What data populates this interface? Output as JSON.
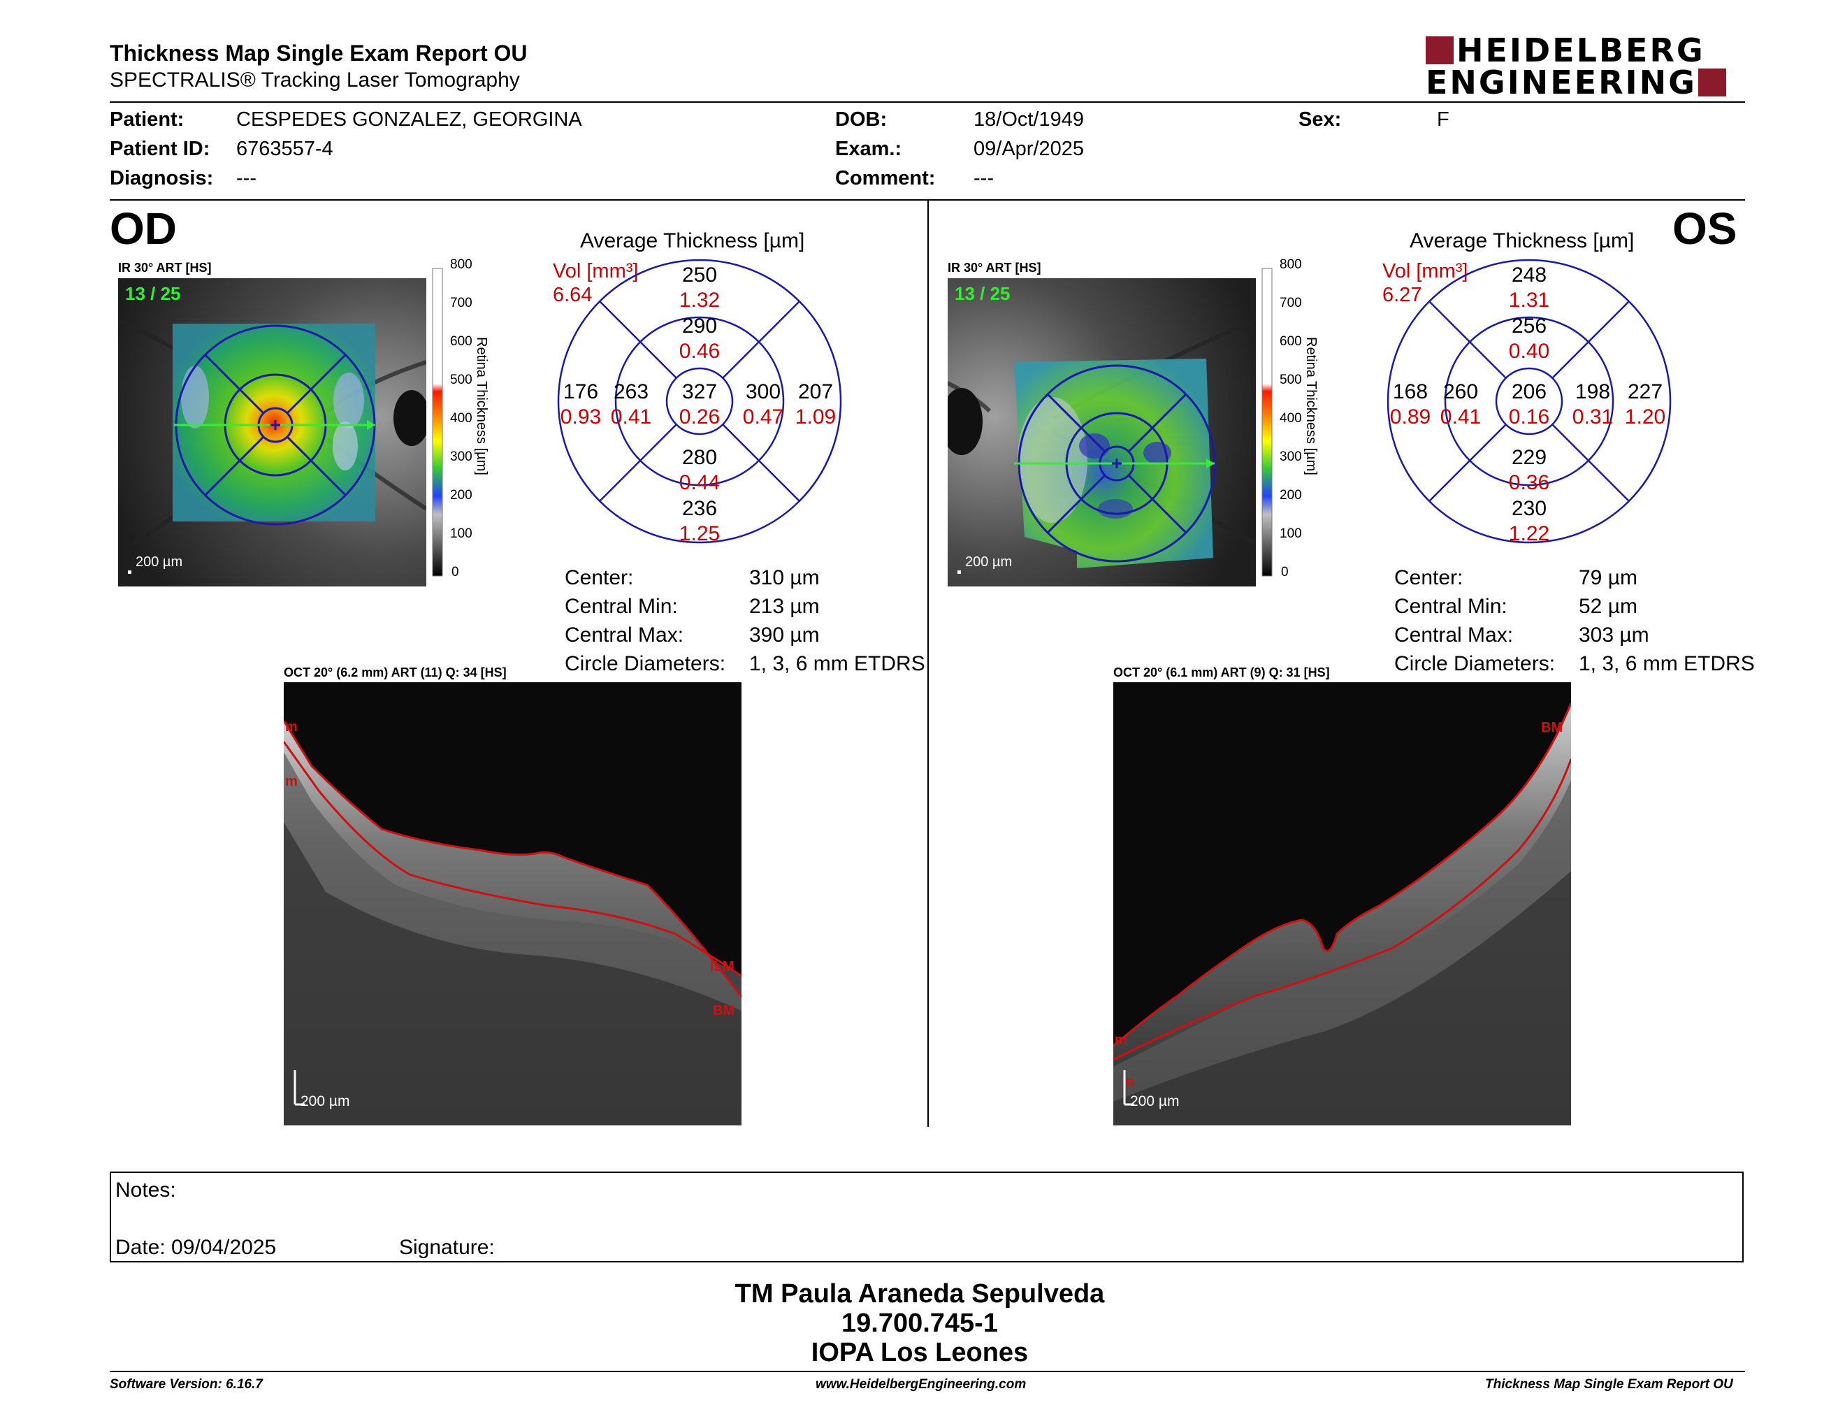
{
  "header": {
    "title": "Thickness Map Single Exam Report OU",
    "subtitle": "SPECTRALIS® Tracking Laser Tomography",
    "logo_line1": "HEIDELBERG",
    "logo_line2": "ENGINEERING",
    "logo_color": "#8b1a2b"
  },
  "patient": {
    "patient_label": "Patient:",
    "patient_value": "CESPEDES GONZALEZ, GEORGINA",
    "id_label": "Patient ID:",
    "id_value": "6763557-4",
    "diagnosis_label": "Diagnosis:",
    "diagnosis_value": "---",
    "dob_label": "DOB:",
    "dob_value": "18/Oct/1949",
    "exam_label": "Exam.:",
    "exam_value": "09/Apr/2025",
    "comment_label": "Comment:",
    "comment_value": "---",
    "sex_label": "Sex:",
    "sex_value": "F"
  },
  "od": {
    "eye": "OD",
    "ir_label": "IR 30° ART [HS]",
    "frame": "13 / 25",
    "scale_bar": "200 µm",
    "colorbar_ticks": [
      "800",
      "700",
      "600",
      "500",
      "400",
      "300",
      "200",
      "100",
      "0"
    ],
    "colorbar_title": "Retina Thickness [µm]",
    "avg_title": "Average Thickness [µm]",
    "vol_label": "Vol [mm³]",
    "vol_value": "6.64",
    "sectors": {
      "outer_sup": {
        "t": "250",
        "v": "1.32"
      },
      "inner_sup": {
        "t": "290",
        "v": "0.46"
      },
      "outer_left": {
        "t": "176",
        "v": "0.93"
      },
      "inner_left": {
        "t": "263",
        "v": "0.41"
      },
      "center": {
        "t": "327",
        "v": "0.26"
      },
      "inner_right": {
        "t": "300",
        "v": "0.47"
      },
      "outer_right": {
        "t": "207",
        "v": "1.09"
      },
      "inner_inf": {
        "t": "280",
        "v": "0.44"
      },
      "outer_inf": {
        "t": "236",
        "v": "1.25"
      }
    },
    "stats": [
      {
        "label": "Center:",
        "value": "310 µm"
      },
      {
        "label": "Central Min:",
        "value": "213 µm"
      },
      {
        "label": "Central Max:",
        "value": "390 µm"
      },
      {
        "label": "Circle Diameters:",
        "value": "1, 3, 6 mm ETDRS"
      }
    ],
    "oct_label": "OCT 20° (6.2 mm) ART (11) Q: 34 [HS]",
    "oct_scale": "200 µm",
    "seg_labels": [
      "ILM",
      "BM"
    ]
  },
  "os": {
    "eye": "OS",
    "ir_label": "IR 30° ART [HS]",
    "frame": "13 / 25",
    "scale_bar": "200 µm",
    "colorbar_ticks": [
      "800",
      "700",
      "600",
      "500",
      "400",
      "300",
      "200",
      "100",
      "0"
    ],
    "colorbar_title": "Retina Thickness [µm]",
    "avg_title": "Average Thickness [µm]",
    "vol_label": "Vol [mm³]",
    "vol_value": "6.27",
    "sectors": {
      "outer_sup": {
        "t": "248",
        "v": "1.31"
      },
      "inner_sup": {
        "t": "256",
        "v": "0.40"
      },
      "outer_left": {
        "t": "168",
        "v": "0.89"
      },
      "inner_left": {
        "t": "260",
        "v": "0.41"
      },
      "center": {
        "t": "206",
        "v": "0.16"
      },
      "inner_right": {
        "t": "198",
        "v": "0.31"
      },
      "outer_right": {
        "t": "227",
        "v": "1.20"
      },
      "inner_inf": {
        "t": "229",
        "v": "0.36"
      },
      "outer_inf": {
        "t": "230",
        "v": "1.22"
      }
    },
    "stats": [
      {
        "label": "Center:",
        "value": "79 µm"
      },
      {
        "label": "Central Min:",
        "value": "52 µm"
      },
      {
        "label": "Central Max:",
        "value": "303 µm"
      },
      {
        "label": "Circle Diameters:",
        "value": "1, 3, 6 mm ETDRS"
      }
    ],
    "oct_label": "OCT 20° (6.1 mm) ART (9) Q: 31 [HS]",
    "oct_scale": "200 µm",
    "seg_labels": [
      "BM"
    ]
  },
  "notes": {
    "notes_label": "Notes:",
    "date_label": "Date: 09/04/2025",
    "signature_label": "Signature:"
  },
  "signer": {
    "name": "TM Paula Araneda Sepulveda",
    "rut": "19.700.745-1",
    "org": "IOPA Los Leones"
  },
  "footer": {
    "left": "Software Version: 6.16.7",
    "center": "www.HeidelbergEngineering.com",
    "right": "Thickness Map Single Exam Report OU"
  },
  "colors": {
    "sector_value_red": "#cc0000",
    "grid_blue": "#1a1aa8",
    "frame_green": "#33ee33"
  }
}
